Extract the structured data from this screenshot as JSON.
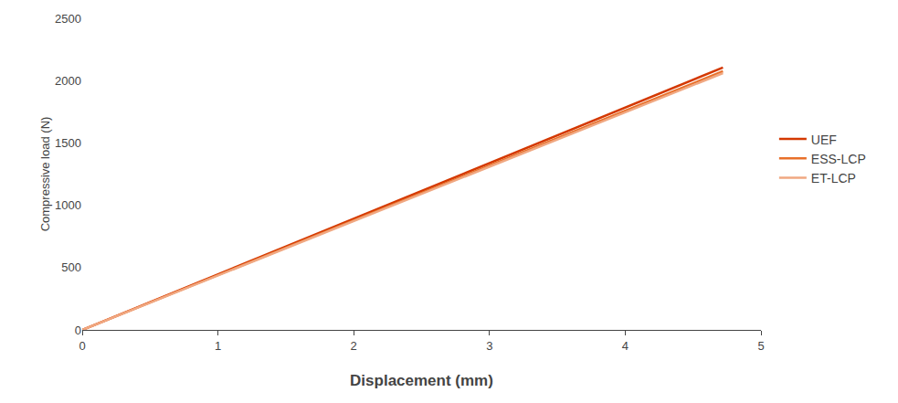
{
  "chart_data": {
    "type": "line",
    "x": [
      0,
      4.72
    ],
    "series": [
      {
        "name": "UEF",
        "color": "#d43800",
        "values": [
          0,
          2105
        ]
      },
      {
        "name": "ESS-LCP",
        "color": "#e8702a",
        "values": [
          0,
          2075
        ]
      },
      {
        "name": "ET-LCP",
        "color": "#f0a882",
        "values": [
          0,
          2060
        ]
      }
    ],
    "xlabel": "Displacement (mm)",
    "ylabel": "Compressive load (N)",
    "xlim": [
      0,
      5
    ],
    "ylim": [
      0,
      2500
    ],
    "xticks": [
      0,
      1,
      2,
      3,
      4,
      5
    ],
    "yticks": [
      0,
      500,
      1000,
      1500,
      2000,
      2500
    ],
    "grid": false,
    "legend": "right"
  }
}
